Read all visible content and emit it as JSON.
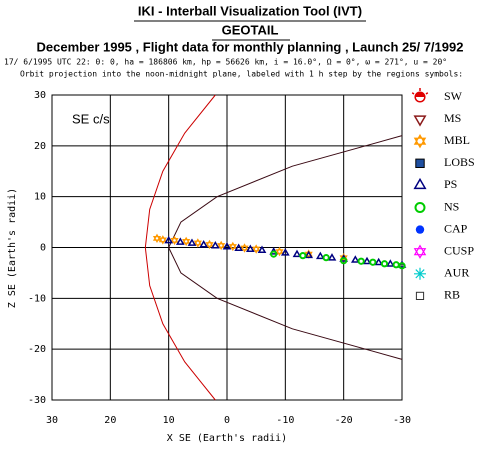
{
  "chart_data": {
    "type": "scatter",
    "title": "IKI - Interball Visualization Tool (IVT)",
    "subtitle": "GEOTAIL",
    "heading": "December 1995 ,  Flight data for monthly planning ,   Launch 25/ 7/1992",
    "orbit_params": "17/ 6/1995 UTC 22: 0: 0, ha = 186806 km, hp = 56626 km, i = 16.0°, Ω =  0°, ω = 271°, u =  20°",
    "caption": "Orbit projection into the noon-midnight plane, labeled with 1 h step by the regions symbols:",
    "annotation": "SE c/s",
    "xlabel": "X SE (Earth's radii)",
    "ylabel": "Z SE (Earth's radii)",
    "xlim": [
      30,
      -30
    ],
    "ylim": [
      -30,
      30
    ],
    "xticks": [
      30,
      20,
      10,
      0,
      -10,
      -20,
      -30
    ],
    "yticks": [
      30,
      20,
      10,
      0,
      -10,
      -20,
      -30
    ],
    "grid": true,
    "curves": [
      {
        "color": "#cc0000",
        "x": [
          2,
          7.25,
          11,
          13.25,
          14,
          13.25,
          11,
          7.25,
          2
        ],
        "y": [
          30,
          22.5,
          15,
          7.5,
          0,
          -7.5,
          -15,
          -22.5,
          -30
        ]
      },
      {
        "color": "#3a0a14",
        "x": [
          -30,
          -11.2,
          1.7,
          7.9,
          10,
          7.9,
          1.7,
          -11.2,
          -30
        ],
        "y": [
          22,
          16,
          10,
          5,
          0,
          -5,
          -10,
          -16,
          -22
        ]
      }
    ],
    "series": [
      {
        "name": "SW",
        "color": "#e00000",
        "marker": "sun",
        "x": [],
        "y": []
      },
      {
        "name": "MS",
        "color": "#8b1a1a",
        "marker": "tri-down",
        "x": [],
        "y": []
      },
      {
        "name": "MBL",
        "color": "#ff9900",
        "marker": "star",
        "x": [
          12,
          11,
          9,
          7,
          5,
          3,
          1,
          -1,
          -3,
          -5,
          -9,
          -14,
          -20
        ],
        "y": [
          1.8,
          1.5,
          1.4,
          1.2,
          0.9,
          0.6,
          0.4,
          0.2,
          -0.1,
          -0.3,
          -0.8,
          -1.3,
          -2.0
        ]
      },
      {
        "name": "LOBS",
        "color": "#1f4fa0",
        "marker": "square-filled",
        "x": [],
        "y": []
      },
      {
        "name": "PS",
        "color": "#000080",
        "marker": "triangle",
        "x": [
          10,
          8,
          6,
          4,
          2,
          0,
          -2,
          -4,
          -6,
          -8,
          -10,
          -12,
          -14,
          -16,
          -18,
          -20,
          -22,
          -24,
          -26,
          -28,
          -30
        ],
        "y": [
          1.3,
          1.0,
          0.8,
          0.5,
          0.3,
          0.1,
          -0.2,
          -0.4,
          -0.6,
          -0.9,
          -1.1,
          -1.4,
          -1.6,
          -1.8,
          -2.1,
          -2.3,
          -2.5,
          -2.8,
          -3.0,
          -3.3,
          -3.5
        ]
      },
      {
        "name": "NS",
        "color": "#00cc00",
        "marker": "circle-open",
        "x": [
          -8,
          -13,
          -17,
          -20,
          -23,
          -25,
          -27,
          -29,
          -30
        ],
        "y": [
          -1.3,
          -1.6,
          -2.0,
          -2.6,
          -2.7,
          -2.9,
          -3.2,
          -3.4,
          -3.6
        ]
      },
      {
        "name": "CAP",
        "color": "#0033ff",
        "marker": "circle-filled",
        "x": [],
        "y": []
      },
      {
        "name": "CUSP",
        "color": "#ff00ff",
        "marker": "star-open",
        "x": [],
        "y": []
      },
      {
        "name": "AUR",
        "color": "#00cccc",
        "marker": "asterisk",
        "x": [],
        "y": []
      },
      {
        "name": "RB",
        "color": "#333333",
        "marker": "square-open",
        "x": [],
        "y": []
      }
    ]
  }
}
